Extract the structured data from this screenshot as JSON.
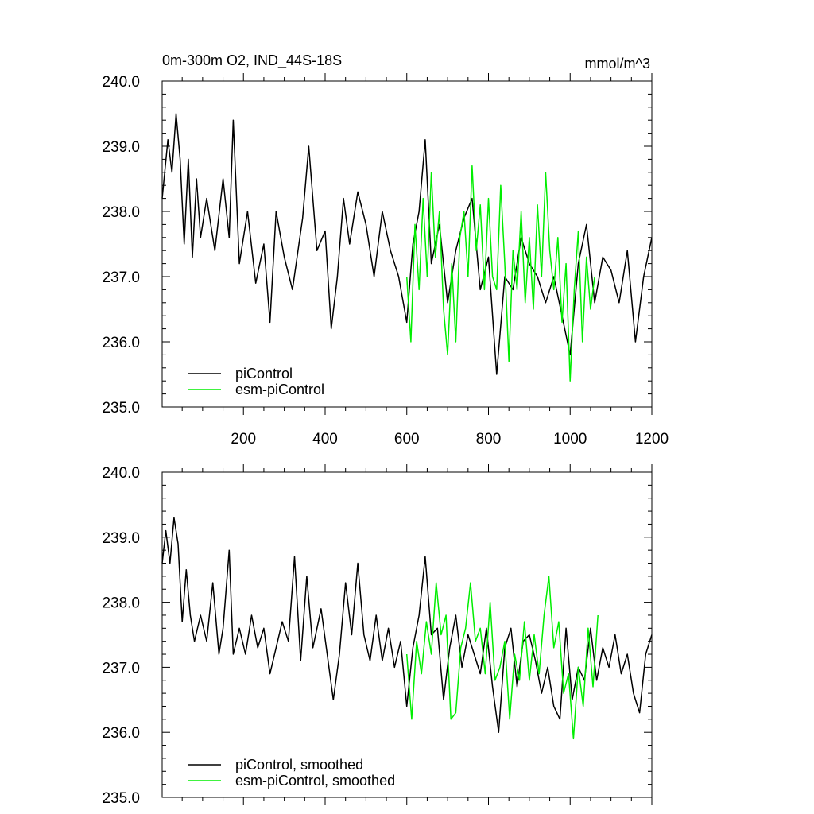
{
  "header": {
    "title": "0m-300m O2, IND_44S-18S",
    "units": "mmol/m^3"
  },
  "colors": {
    "picontrol": "#000000",
    "esm_picontrol": "#00ee00"
  },
  "chart_data": [
    {
      "type": "line",
      "title": "0m-300m O2, IND_44S-18S",
      "units_label": "mmol/m^3",
      "xlabel": "",
      "ylabel": "",
      "xlim": [
        1,
        1200
      ],
      "ylim": [
        235.0,
        240.0
      ],
      "x_ticks": [
        200,
        400,
        600,
        800,
        1000,
        1200
      ],
      "y_ticks": [
        "235.0",
        "236.0",
        "237.0",
        "238.0",
        "239.0",
        "240.0"
      ],
      "legend_position": "bottom-left",
      "series": [
        {
          "name": "piControl",
          "color": "#000000",
          "x": [
            1,
            15,
            25,
            35,
            45,
            55,
            65,
            75,
            85,
            95,
            110,
            130,
            150,
            165,
            175,
            190,
            210,
            230,
            250,
            265,
            280,
            300,
            320,
            345,
            360,
            380,
            400,
            415,
            430,
            445,
            460,
            480,
            500,
            520,
            540,
            560,
            580,
            600,
            615,
            630,
            645,
            660,
            680,
            700,
            720,
            740,
            760,
            780,
            800,
            820,
            840,
            860,
            880,
            900,
            920,
            940,
            960,
            980,
            1000,
            1020,
            1040,
            1060,
            1080,
            1100,
            1120,
            1140,
            1160,
            1180,
            1200
          ],
          "y": [
            238.2,
            239.1,
            238.6,
            239.5,
            238.8,
            237.5,
            238.8,
            237.3,
            238.5,
            237.6,
            238.2,
            237.4,
            238.5,
            237.6,
            239.4,
            237.2,
            238.0,
            236.9,
            237.5,
            236.3,
            238.0,
            237.3,
            236.8,
            237.9,
            239.0,
            237.4,
            237.7,
            236.2,
            237.0,
            238.2,
            237.5,
            238.3,
            237.8,
            237.0,
            238.0,
            237.4,
            237.0,
            236.3,
            237.5,
            238.0,
            239.1,
            237.2,
            237.8,
            236.6,
            237.4,
            237.9,
            238.2,
            236.8,
            237.3,
            235.5,
            237.0,
            236.8,
            237.6,
            237.2,
            237.0,
            236.6,
            237.0,
            236.4,
            235.8,
            237.2,
            237.8,
            236.6,
            237.3,
            237.1,
            236.6,
            237.4,
            236.0,
            237.0,
            237.6
          ]
        },
        {
          "name": "esm-piControl",
          "color": "#00ee00",
          "x": [
            600,
            610,
            620,
            630,
            640,
            650,
            660,
            670,
            680,
            690,
            700,
            710,
            720,
            730,
            740,
            750,
            760,
            770,
            780,
            790,
            800,
            810,
            820,
            830,
            840,
            850,
            860,
            870,
            880,
            890,
            900,
            910,
            920,
            930,
            940,
            950,
            960,
            970,
            980,
            990,
            1000,
            1010,
            1020,
            1030,
            1040,
            1050,
            1060
          ],
          "y": [
            237.0,
            236.0,
            237.8,
            236.8,
            238.2,
            237.0,
            238.6,
            237.3,
            238.0,
            236.5,
            235.8,
            237.2,
            236.0,
            237.6,
            238.0,
            237.0,
            238.7,
            237.4,
            238.1,
            236.8,
            238.2,
            237.0,
            236.8,
            238.4,
            237.2,
            235.7,
            237.4,
            236.8,
            238.0,
            236.6,
            237.6,
            236.5,
            238.1,
            237.0,
            238.6,
            237.4,
            236.8,
            237.6,
            236.3,
            237.2,
            235.4,
            236.8,
            237.7,
            236.0,
            237.3,
            236.5,
            237.0
          ]
        }
      ]
    },
    {
      "type": "line",
      "title": "",
      "xlabel": "",
      "ylabel": "",
      "xlim": [
        1,
        1200
      ],
      "ylim": [
        235.0,
        240.0
      ],
      "y_ticks": [
        "235.0",
        "236.0",
        "237.0",
        "238.0",
        "239.0",
        "240.0"
      ],
      "legend_position": "bottom-left",
      "series": [
        {
          "name": "piControl, smoothed",
          "color": "#000000",
          "x": [
            1,
            10,
            20,
            30,
            40,
            50,
            60,
            70,
            80,
            95,
            110,
            125,
            140,
            150,
            165,
            175,
            190,
            205,
            220,
            235,
            250,
            265,
            280,
            295,
            310,
            325,
            340,
            355,
            370,
            390,
            405,
            420,
            435,
            450,
            465,
            480,
            495,
            510,
            525,
            540,
            555,
            570,
            585,
            600,
            615,
            630,
            645,
            660,
            675,
            690,
            705,
            720,
            735,
            750,
            765,
            780,
            795,
            810,
            825,
            840,
            855,
            870,
            885,
            900,
            915,
            930,
            945,
            960,
            975,
            990,
            1005,
            1020,
            1035,
            1050,
            1065,
            1080,
            1095,
            1110,
            1125,
            1140,
            1155,
            1170,
            1185,
            1200
          ],
          "y": [
            238.6,
            239.1,
            238.6,
            239.3,
            238.9,
            237.7,
            238.5,
            237.8,
            237.4,
            237.8,
            237.4,
            238.3,
            237.2,
            237.6,
            238.8,
            237.2,
            237.6,
            237.2,
            237.8,
            237.3,
            237.6,
            236.9,
            237.3,
            237.7,
            237.4,
            238.7,
            237.1,
            238.4,
            237.3,
            237.9,
            237.2,
            236.5,
            237.2,
            238.3,
            237.5,
            238.6,
            237.5,
            237.1,
            237.8,
            237.1,
            237.6,
            237.0,
            237.4,
            236.4,
            237.3,
            237.8,
            238.7,
            237.5,
            237.6,
            236.5,
            237.3,
            237.8,
            237.0,
            237.5,
            237.2,
            236.9,
            237.6,
            236.7,
            236.0,
            237.3,
            237.6,
            236.7,
            237.4,
            237.5,
            237.1,
            236.6,
            237.0,
            236.4,
            236.2,
            237.6,
            236.5,
            237.0,
            236.8,
            237.6,
            236.8,
            237.3,
            237.0,
            237.5,
            236.9,
            237.2,
            236.6,
            236.3,
            237.2,
            237.5
          ]
        },
        {
          "name": "esm-piControl, smoothed",
          "color": "#00ee00",
          "x": [
            600,
            612,
            624,
            636,
            648,
            660,
            672,
            684,
            696,
            708,
            720,
            732,
            744,
            756,
            768,
            780,
            792,
            804,
            816,
            828,
            840,
            852,
            864,
            876,
            888,
            900,
            912,
            924,
            936,
            948,
            960,
            972,
            984,
            996,
            1008,
            1020,
            1032,
            1044,
            1056,
            1068
          ],
          "y": [
            237.2,
            236.2,
            237.4,
            236.9,
            237.7,
            237.2,
            238.3,
            237.5,
            237.8,
            236.2,
            236.3,
            237.3,
            237.6,
            238.3,
            237.4,
            237.6,
            236.9,
            238.0,
            236.8,
            237.0,
            237.4,
            236.2,
            237.2,
            236.8,
            237.7,
            236.8,
            237.5,
            236.9,
            237.8,
            238.4,
            237.3,
            237.7,
            236.6,
            236.9,
            235.9,
            237.0,
            236.4,
            237.6,
            236.7,
            237.8
          ]
        }
      ]
    }
  ]
}
